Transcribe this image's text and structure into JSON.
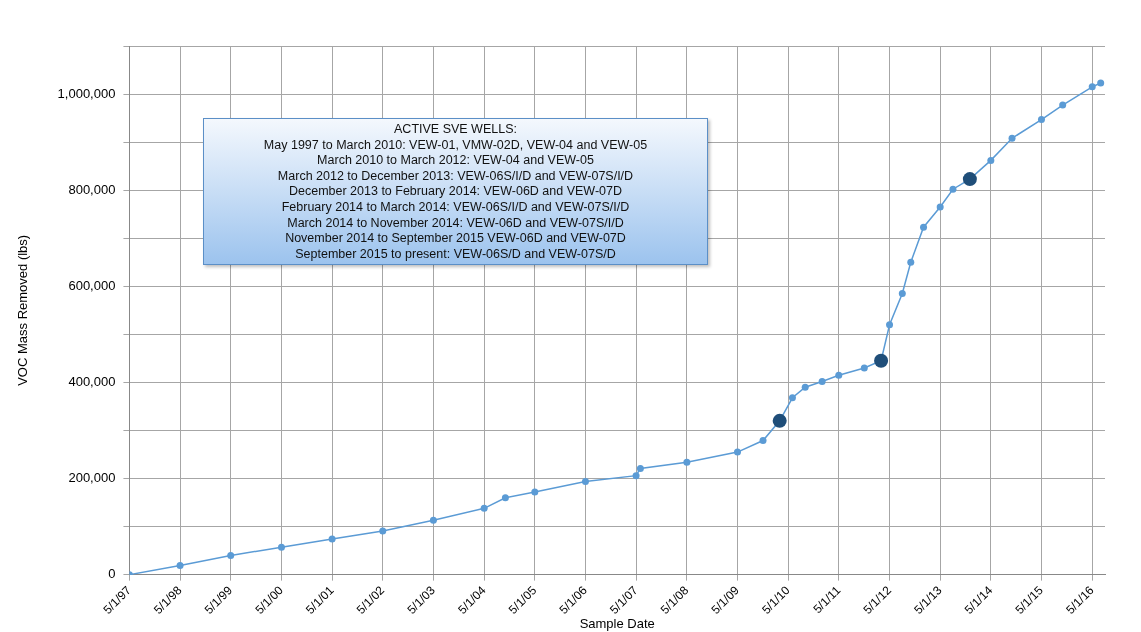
{
  "chart_data": {
    "type": "line",
    "xlabel": "Sample Date",
    "ylabel": "VOC Mass Removed (lbs)",
    "annotations": [
      "ACTIVE SVE WELLS:",
      "May 1997 to March 2010: VEW-01, VMW-02D, VEW-04 and VEW-05",
      "March 2010 to March 2012: VEW-04 and VEW-05",
      "March 2012 to December 2013: VEW-06S/I/D and VEW-07S/I/D",
      "December 2013 to February 2014: VEW-06D and VEW-07D",
      "February 2014 to March 2014: VEW-06S/I/D and VEW-07S/I/D",
      "March 2014 to November 2014: VEW-06D and VEW-07S/I/D",
      "November 2014 to September 2015 VEW-06D and VEW-07D",
      "September 2015 to present: VEW-06S/D and VEW-07S/D"
    ],
    "series": [
      {
        "color": "#5b9bd5",
        "x": [
          "1997-05-01",
          "1998-05-01",
          "1999-05-01",
          "2000-05-01",
          "2001-05-01",
          "2002-05-01",
          "2003-05-01",
          "2004-05-01",
          "2004-10-01",
          "2005-05-01",
          "2006-05-01",
          "2007-05-01",
          "2007-06-01",
          "2008-05-01",
          "2009-05-01",
          "2009-11-01",
          "2010-03-01",
          "2010-06-01",
          "2010-09-01",
          "2011-01-01",
          "2011-05-01",
          "2011-11-01",
          "2012-03-01",
          "2012-05-01",
          "2012-08-01",
          "2012-10-01",
          "2013-01-01",
          "2013-05-01",
          "2013-08-01",
          "2013-12-01",
          "2014-05-01",
          "2014-10-01",
          "2015-05-01",
          "2015-10-01",
          "2016-05-01",
          "2016-07-01"
        ],
        "values": [
          0,
          19000,
          40000,
          57000,
          74000,
          91000,
          113000,
          138000,
          160000,
          172000,
          194000,
          206000,
          221000,
          234000,
          255000,
          279000,
          320000,
          368000,
          390000,
          402000,
          415000,
          430000,
          445000,
          520000,
          585000,
          650000,
          723000,
          765000,
          802000,
          823000,
          862000,
          908000,
          947000,
          977000,
          1015000,
          1023000
        ]
      },
      {
        "type": "scatter",
        "color": "#1f4e79",
        "x": [
          "2010-03-01",
          "2012-03-01",
          "2013-12-01"
        ],
        "values": [
          320000,
          445000,
          823000
        ]
      }
    ],
    "xlim": [
      "1997-05-01",
      "2016-08-01"
    ],
    "xticks": [
      {
        "value": "1997-05-01",
        "label": "5/1/97"
      },
      {
        "value": "1998-05-01",
        "label": "5/1/98"
      },
      {
        "value": "1999-05-01",
        "label": "5/1/99"
      },
      {
        "value": "2000-05-01",
        "label": "5/1/00"
      },
      {
        "value": "2001-05-01",
        "label": "5/1/01"
      },
      {
        "value": "2002-05-01",
        "label": "5/1/02"
      },
      {
        "value": "2003-05-01",
        "label": "5/1/03"
      },
      {
        "value": "2004-05-01",
        "label": "5/1/04"
      },
      {
        "value": "2005-05-01",
        "label": "5/1/05"
      },
      {
        "value": "2006-05-01",
        "label": "5/1/06"
      },
      {
        "value": "2007-05-01",
        "label": "5/1/07"
      },
      {
        "value": "2008-05-01",
        "label": "5/1/08"
      },
      {
        "value": "2009-05-01",
        "label": "5/1/09"
      },
      {
        "value": "2010-05-01",
        "label": "5/1/10"
      },
      {
        "value": "2011-05-01",
        "label": "5/1/11"
      },
      {
        "value": "2012-05-01",
        "label": "5/1/12"
      },
      {
        "value": "2013-05-01",
        "label": "5/1/13"
      },
      {
        "value": "2014-05-01",
        "label": "5/1/14"
      },
      {
        "value": "2015-05-01",
        "label": "5/1/15"
      },
      {
        "value": "2016-05-01",
        "label": "5/1/16"
      }
    ],
    "ylim": [
      0,
      1100000
    ],
    "yticks": [
      0,
      {
        "value": 100000,
        "label": null
      },
      {
        "value": 200000,
        "label": "200,000"
      },
      {
        "value": 300000,
        "label": null
      },
      {
        "value": 400000,
        "label": "400,000"
      },
      {
        "value": 500000,
        "label": null
      },
      {
        "value": 600000,
        "label": "600,000"
      },
      {
        "value": 700000,
        "label": null
      },
      {
        "value": 800000,
        "label": "800,000"
      },
      {
        "value": 900000,
        "label": null
      },
      {
        "value": 1000000,
        "label": "1,000,000"
      },
      {
        "value": 1100000,
        "label": null
      }
    ],
    "grid": true,
    "marker": "circle",
    "line_style": "solid"
  }
}
